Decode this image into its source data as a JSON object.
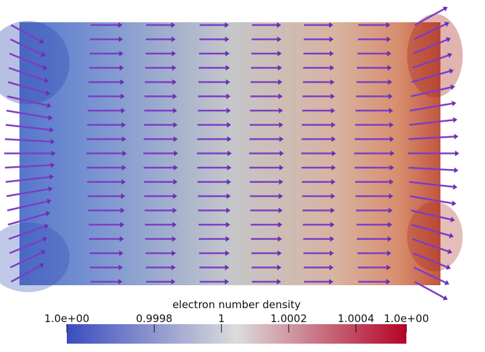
{
  "chart_data": {
    "type": "colorbar-field",
    "title": "electron number density",
    "clim": [
      0.99954,
      1.00055
    ],
    "ticks": [
      {
        "value": 0.99954,
        "label": "1.0e+00"
      },
      0.9998,
      1,
      1.0002,
      1.0004,
      {
        "value": 1.00055,
        "label": "1.0e+00"
      }
    ],
    "colormap": [
      "#3b4cc0",
      "#dcdcdc",
      "#b40426"
    ]
  }
}
